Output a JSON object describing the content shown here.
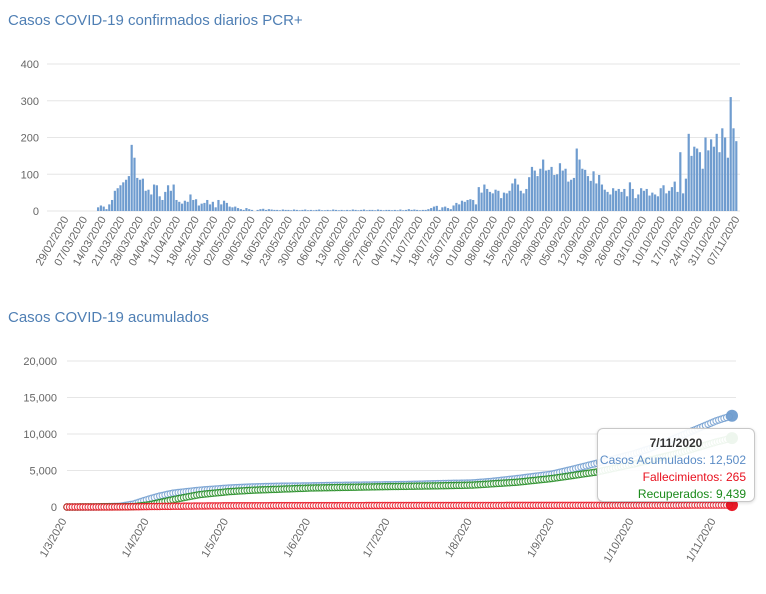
{
  "colors": {
    "bar": "#6f9ccf",
    "casos": "#6f9ccf",
    "fall": "#e8101e",
    "rec": "#1f8a1f",
    "title": "#4f7fb4"
  },
  "chart_data": [
    {
      "type": "bar",
      "title": "Casos COVID-19 confirmados diarios PCR+",
      "ylim": [
        0,
        400
      ],
      "yticks": [
        "0",
        "100",
        "200",
        "300",
        "400"
      ],
      "xtick_labels": [
        "29/02/2020",
        "07/03/2020",
        "14/03/2020",
        "21/03/2020",
        "28/03/2020",
        "04/04/2020",
        "11/04/2020",
        "18/04/2020",
        "25/04/2020",
        "02/05/2020",
        "09/05/2020",
        "16/05/2020",
        "23/05/2020",
        "30/05/2020",
        "06/06/2020",
        "13/06/2020",
        "20/06/2020",
        "27/06/2020",
        "04/07/2020",
        "11/07/2020",
        "18/07/2020",
        "25/07/2020",
        "01/08/2020",
        "08/08/2020",
        "15/08/2020",
        "22/08/2020",
        "29/08/2020",
        "05/09/2020",
        "12/09/2020",
        "19/09/2020",
        "26/09/2020",
        "03/10/2020",
        "10/10/2020",
        "17/10/2020",
        "24/10/2020",
        "31/10/2020",
        "07/11/2020"
      ],
      "values": [
        0,
        0,
        0,
        0,
        0,
        0,
        0,
        0,
        0,
        0,
        0,
        0,
        0,
        0,
        0,
        10,
        15,
        12,
        5,
        18,
        30,
        55,
        62,
        70,
        78,
        85,
        95,
        180,
        145,
        90,
        85,
        88,
        55,
        58,
        45,
        72,
        70,
        40,
        30,
        52,
        70,
        55,
        72,
        30,
        25,
        20,
        28,
        25,
        45,
        30,
        32,
        15,
        20,
        22,
        30,
        18,
        25,
        10,
        30,
        18,
        28,
        22,
        12,
        10,
        12,
        8,
        5,
        3,
        8,
        5,
        3,
        0,
        3,
        5,
        6,
        3,
        5,
        4,
        3,
        3,
        2,
        4,
        3,
        3,
        2,
        4,
        3,
        2,
        3,
        4,
        2,
        3,
        2,
        3,
        4,
        2,
        2,
        3,
        2,
        4,
        3,
        2,
        3,
        2,
        3,
        2,
        4,
        3,
        2,
        3,
        4,
        2,
        3,
        3,
        2,
        4,
        3,
        2,
        3,
        3,
        2,
        3,
        2,
        4,
        2,
        3,
        5,
        3,
        4,
        3,
        2,
        3,
        3,
        5,
        8,
        12,
        14,
        3,
        10,
        12,
        8,
        5,
        15,
        22,
        18,
        28,
        25,
        30,
        32,
        30,
        18,
        65,
        50,
        72,
        60,
        52,
        48,
        58,
        55,
        35,
        50,
        48,
        55,
        75,
        88,
        72,
        55,
        48,
        60,
        92,
        120,
        110,
        95,
        115,
        140,
        110,
        112,
        120,
        98,
        100,
        130,
        110,
        115,
        80,
        85,
        90,
        170,
        140,
        115,
        112,
        95,
        82,
        108,
        75,
        98,
        72,
        58,
        52,
        45,
        62,
        55,
        60,
        52,
        60,
        40,
        78,
        60,
        35,
        45,
        62,
        55,
        60,
        42,
        50,
        45,
        40,
        62,
        70,
        48,
        55,
        65,
        80,
        52,
        160,
        48,
        88,
        210,
        150,
        175,
        170,
        160,
        115,
        200,
        165,
        195,
        175,
        210,
        160,
        225,
        200,
        145,
        310,
        225,
        190
      ],
      "note_values": "bar heights in cases, one per day from 29/02/2020 to 07/11/2020 (approx)"
    },
    {
      "type": "scatter",
      "title": "Casos COVID-19 acumulados",
      "ylim": [
        0,
        20000
      ],
      "yticks": [
        "0",
        "5,000",
        "10,000",
        "15,000",
        "20,000"
      ],
      "xtick_labels": [
        "1/3/2020",
        "1/4/2020",
        "1/5/2020",
        "1/6/2020",
        "1/7/2020",
        "1/8/2020",
        "1/9/2020",
        "1/10/2020",
        "1/11/2020"
      ],
      "series": [
        {
          "name": "Casos Acumulados",
          "x_days": [
            0,
            10,
            20,
            25,
            31,
            35,
            40,
            50,
            61,
            70,
            80,
            92,
            100,
            110,
            122,
            130,
            140,
            153,
            160,
            170,
            183,
            190,
            200,
            214,
            220,
            230,
            245,
            251
          ],
          "values": [
            0,
            5,
            100,
            400,
            1100,
            1500,
            1900,
            2300,
            2600,
            2750,
            2850,
            2900,
            2950,
            3000,
            3050,
            3100,
            3200,
            3300,
            3500,
            3900,
            4500,
            5100,
            6000,
            7300,
            8000,
            9500,
            11800,
            12502
          ]
        },
        {
          "name": "Fallecimientos",
          "x_days": [
            0,
            20,
            31,
            50,
            61,
            92,
            122,
            153,
            183,
            214,
            245,
            251
          ],
          "values": [
            0,
            10,
            60,
            140,
            170,
            190,
            200,
            210,
            220,
            235,
            258,
            265
          ]
        },
        {
          "name": "Recuperados",
          "x_days": [
            0,
            25,
            31,
            40,
            50,
            61,
            70,
            92,
            122,
            140,
            153,
            170,
            183,
            200,
            214,
            230,
            245,
            251
          ],
          "values": [
            0,
            50,
            300,
            1000,
            1700,
            2100,
            2300,
            2600,
            2800,
            2900,
            3000,
            3400,
            3900,
            4800,
            5900,
            7300,
            8900,
            9439
          ]
        }
      ]
    }
  ],
  "tooltip": {
    "date": "7/11/2020",
    "casos": "Casos Acumulados: 12,502",
    "fall": "Fallecimientos: 265",
    "rec": "Recuperados: 9,439"
  }
}
